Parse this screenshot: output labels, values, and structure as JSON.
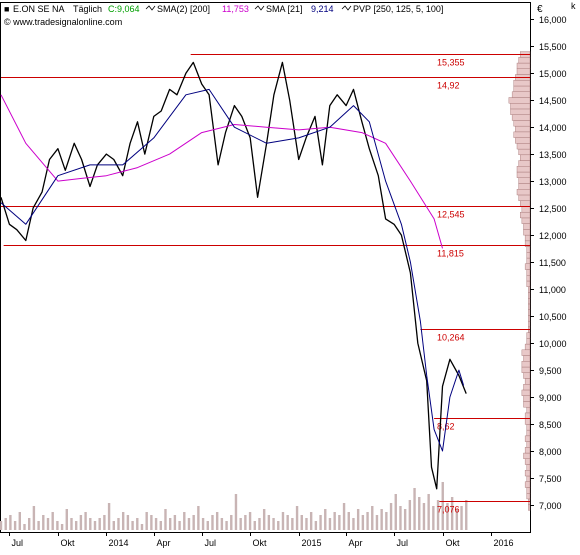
{
  "header": {
    "instrument": "E.ON SE NA",
    "interval": "Täglich",
    "close": "C:9,064",
    "sma2_label": "SMA(2) [200]",
    "sma2_value": "11,753",
    "sma21_label": "SMA [21]",
    "sma21_value": "9,214",
    "pvp_label": "PVP [250, 125, 5, 100]",
    "copyright": "© www.tradesignalonline.com",
    "currency": "€",
    "corner_mark": "k"
  },
  "colors": {
    "price": "#000000",
    "sma200": "#cc00cc",
    "sma21": "#00007f",
    "level_line": "#cc0000",
    "level_text": "#cc0000",
    "volume": "#c8b4b4",
    "profile_fill": "#e8c8c8",
    "profile_stroke": "#a07070",
    "axis": "#000000"
  },
  "chart_data": {
    "type": "line",
    "title": "E.ON SE NA",
    "y_unit": "€",
    "ylim": [
      6.5,
      16.3
    ],
    "y_ticks": [
      7.0,
      7.5,
      8.0,
      8.5,
      9.0,
      9.5,
      10.0,
      10.5,
      11.0,
      11.5,
      12.0,
      12.5,
      13.0,
      13.5,
      14.0,
      14.5,
      15.0,
      15.5,
      16.0
    ],
    "y_tick_labels": [
      "7,000",
      "7,500",
      "8,000",
      "8,500",
      "9,000",
      "9,500",
      "10,000",
      "10,500",
      "11,000",
      "11,500",
      "12,000",
      "12,500",
      "13,000",
      "13,500",
      "14,000",
      "14,500",
      "15,000",
      "15,500",
      "16,000"
    ],
    "x_range": [
      "2013-06-15",
      "2016-03-15"
    ],
    "x_ticks": [
      {
        "date": "2013-07-01",
        "label": "Jul"
      },
      {
        "date": "2013-10-01",
        "label": "Okt"
      },
      {
        "date": "2014-01-01",
        "label": "2014"
      },
      {
        "date": "2014-04-01",
        "label": "Apr"
      },
      {
        "date": "2014-07-01",
        "label": "Jul"
      },
      {
        "date": "2014-10-01",
        "label": "Okt"
      },
      {
        "date": "2015-01-01",
        "label": "2015"
      },
      {
        "date": "2015-04-01",
        "label": "Apr"
      },
      {
        "date": "2015-07-01",
        "label": "Jul"
      },
      {
        "date": "2015-10-01",
        "label": "Okt"
      },
      {
        "date": "2016-01-01",
        "label": "2016"
      }
    ],
    "levels": [
      {
        "value": 15.355,
        "label": "15,355",
        "from": "2014-06-10"
      },
      {
        "value": 14.92,
        "label": "14,92",
        "from": "2013-06-15"
      },
      {
        "value": 12.545,
        "label": "12,545",
        "from": "2013-06-15"
      },
      {
        "value": 11.815,
        "label": "11,815",
        "from": "2013-06-20"
      },
      {
        "value": 10.264,
        "label": "10,264",
        "from": "2015-08-20"
      },
      {
        "value": 8.62,
        "label": "8,62",
        "from": "2015-09-15"
      },
      {
        "value": 7.076,
        "label": "7,076",
        "from": "2015-09-25"
      }
    ],
    "series": [
      {
        "name": "E.ON SE NA",
        "kind": "price",
        "x": [
          "2013-06-15",
          "2013-07-01",
          "2013-07-15",
          "2013-08-01",
          "2013-08-15",
          "2013-09-01",
          "2013-09-15",
          "2013-10-01",
          "2013-10-15",
          "2013-11-01",
          "2013-11-15",
          "2013-12-01",
          "2013-12-15",
          "2014-01-01",
          "2014-01-15",
          "2014-02-01",
          "2014-02-15",
          "2014-03-01",
          "2014-03-15",
          "2014-04-01",
          "2014-04-15",
          "2014-05-01",
          "2014-05-15",
          "2014-06-01",
          "2014-06-15",
          "2014-07-01",
          "2014-07-15",
          "2014-08-01",
          "2014-08-15",
          "2014-09-01",
          "2014-09-15",
          "2014-10-01",
          "2014-10-15",
          "2014-11-01",
          "2014-11-15",
          "2014-12-01",
          "2014-12-15",
          "2015-01-01",
          "2015-01-15",
          "2015-02-01",
          "2015-02-15",
          "2015-03-01",
          "2015-03-15",
          "2015-04-01",
          "2015-04-15",
          "2015-05-01",
          "2015-05-15",
          "2015-06-01",
          "2015-06-15",
          "2015-07-01",
          "2015-07-15",
          "2015-08-01",
          "2015-08-15",
          "2015-09-01",
          "2015-09-10",
          "2015-09-20",
          "2015-10-01",
          "2015-10-15",
          "2015-11-01",
          "2015-11-15"
        ],
        "values": [
          12.7,
          12.2,
          12.1,
          11.9,
          12.5,
          12.8,
          13.4,
          13.6,
          13.2,
          13.7,
          13.4,
          12.9,
          13.3,
          13.5,
          13.4,
          13.1,
          13.7,
          14.1,
          13.5,
          14.2,
          14.3,
          14.7,
          14.6,
          15.0,
          15.2,
          14.8,
          14.6,
          13.3,
          13.9,
          14.4,
          14.2,
          13.8,
          12.7,
          13.7,
          14.6,
          15.2,
          14.5,
          13.4,
          13.8,
          14.2,
          13.3,
          14.4,
          14.6,
          14.4,
          14.7,
          14.1,
          13.6,
          13.1,
          12.3,
          12.2,
          12.0,
          11.3,
          10.0,
          9.3,
          7.7,
          7.3,
          9.2,
          9.7,
          9.4,
          9.064
        ]
      },
      {
        "name": "SMA(2) [200]",
        "kind": "sma200",
        "x": [
          "2013-06-15",
          "2013-08-01",
          "2013-10-01",
          "2013-11-15",
          "2014-01-01",
          "2014-03-01",
          "2014-05-01",
          "2014-07-01",
          "2014-09-01",
          "2014-11-01",
          "2015-01-01",
          "2015-03-01",
          "2015-05-01",
          "2015-06-15",
          "2015-08-01",
          "2015-09-15",
          "2015-10-01"
        ],
        "values": [
          14.6,
          13.7,
          13.0,
          13.05,
          13.1,
          13.25,
          13.5,
          13.9,
          14.05,
          14.0,
          13.95,
          14.0,
          13.9,
          13.7,
          13.0,
          12.3,
          11.753
        ]
      },
      {
        "name": "SMA [21]",
        "kind": "sma21",
        "x": [
          "2013-06-15",
          "2013-08-01",
          "2013-10-01",
          "2013-12-01",
          "2014-02-01",
          "2014-04-01",
          "2014-06-01",
          "2014-07-15",
          "2014-09-01",
          "2014-11-01",
          "2015-01-01",
          "2015-03-01",
          "2015-04-15",
          "2015-05-15",
          "2015-06-15",
          "2015-07-15",
          "2015-08-01",
          "2015-08-20",
          "2015-09-01",
          "2015-09-15",
          "2015-10-01",
          "2015-10-15",
          "2015-11-01",
          "2015-11-10"
        ],
        "values": [
          12.6,
          12.2,
          13.1,
          13.3,
          13.3,
          13.8,
          14.6,
          14.7,
          14.0,
          13.7,
          13.8,
          14.0,
          14.4,
          14.1,
          13.0,
          12.2,
          11.5,
          10.4,
          9.4,
          8.4,
          8.0,
          9.0,
          9.5,
          9.214
        ]
      }
    ],
    "volume": {
      "x_range": [
        "2013-06-15",
        "2015-11-15"
      ],
      "samples": [
        3,
        4,
        5,
        3,
        6,
        2,
        4,
        8,
        3,
        5,
        4,
        6,
        3,
        2,
        7,
        4,
        3,
        5,
        6,
        4,
        3,
        4,
        5,
        9,
        3,
        4,
        6,
        5,
        3,
        4,
        2,
        6,
        5,
        4,
        3,
        7,
        4,
        5,
        3,
        6,
        4,
        5,
        8,
        4,
        3,
        5,
        6,
        4,
        3,
        5,
        12,
        4,
        5,
        6,
        3,
        4,
        7,
        5,
        4,
        3,
        6,
        5,
        4,
        8,
        5,
        4,
        6,
        3,
        5,
        7,
        4,
        6,
        5,
        9,
        6,
        4,
        7,
        5,
        6,
        8,
        5,
        7,
        6,
        9,
        12,
        8,
        7,
        10,
        14,
        11,
        9,
        12,
        8,
        10,
        16,
        9,
        11,
        7,
        8,
        10
      ],
      "max_value": 20
    },
    "volume_profile": {
      "price_min": 6.9,
      "price_max": 15.4,
      "samples": [
        1,
        1,
        2,
        2,
        3,
        2,
        3,
        2,
        3,
        4,
        3,
        2,
        3,
        2,
        2,
        3,
        3,
        2,
        4,
        4,
        5,
        4,
        3,
        4,
        5,
        5,
        4,
        5,
        3,
        2,
        2,
        1,
        1,
        1,
        1,
        1,
        1,
        1,
        1,
        2,
        2,
        2,
        3,
        2,
        2,
        2,
        3,
        3,
        4,
        4,
        5,
        6,
        5,
        6,
        7,
        8,
        7,
        7,
        8,
        8,
        7,
        6,
        7,
        8,
        9,
        10,
        9,
        10,
        11,
        12,
        12,
        13,
        11,
        10,
        10,
        9,
        8,
        8,
        7,
        6
      ],
      "max_value": 16
    }
  }
}
